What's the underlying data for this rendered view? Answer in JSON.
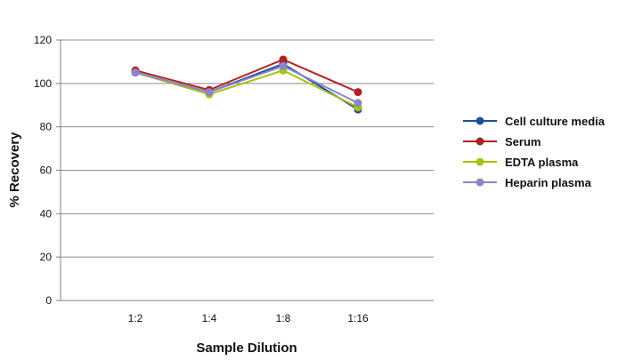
{
  "chart_data": {
    "type": "line",
    "title": "",
    "xlabel": "Sample Dilution",
    "ylabel": "% Recovery",
    "categories": [
      "1:2",
      "1:4",
      "1:8",
      "1:16"
    ],
    "ylim": [
      0,
      120
    ],
    "yticks": [
      0,
      20,
      40,
      60,
      80,
      100,
      120
    ],
    "grid": true,
    "legend_position": "right",
    "series": [
      {
        "name": "Cell culture media",
        "color": "#1f4e9c",
        "values": [
          105,
          96,
          109,
          88
        ]
      },
      {
        "name": "Serum",
        "color": "#b22222",
        "values": [
          106,
          97,
          111,
          96
        ]
      },
      {
        "name": "EDTA plasma",
        "color": "#a8c010",
        "values": [
          105,
          95,
          106,
          89
        ]
      },
      {
        "name": "Heparin plasma",
        "color": "#8a86c8",
        "values": [
          105,
          96,
          108,
          91
        ]
      }
    ]
  }
}
